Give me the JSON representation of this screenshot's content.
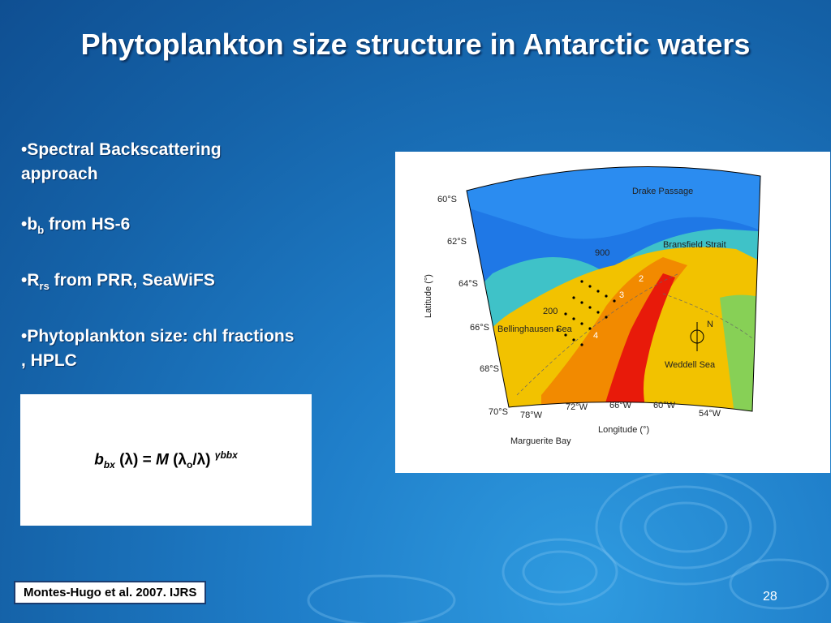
{
  "slide": {
    "title": "Phytoplankton size structure in Antarctic waters",
    "bullets": [
      {
        "pre": "•Spectral Backscattering approach",
        "sub": "",
        "post": ""
      },
      {
        "pre": "•b",
        "sub": "b",
        "post": " from HS-6"
      },
      {
        "pre": "•R",
        "sub": "rs",
        "post": " from PRR, SeaWiFS"
      },
      {
        "pre": "•Phytoplankton size: chl fractions , HPLC",
        "sub": "",
        "post": ""
      }
    ],
    "equation": {
      "b": "b",
      "b_sub": "bx",
      "lam_open": " (λ) = ",
      "M": "M",
      "lam0_open": " (λ",
      "lam0_sub": "o",
      "lam0_close": "/λ) ",
      "exp": "γbbx"
    },
    "citation": "Montes-Hugo et al. 2007. IJRS",
    "page_number": "28"
  },
  "map": {
    "lat_labels": [
      "60°S",
      "62°S",
      "64°S",
      "66°S",
      "68°S",
      "70°S"
    ],
    "lon_labels": [
      "78°W",
      "72°W",
      "66°W",
      "60°W",
      "54°W"
    ],
    "y_axis_label": "Latitude (°)",
    "x_axis_label": "Longitude (°)",
    "place_labels": {
      "drake": "Drake Passage",
      "bransfield": "Bransfield Strait",
      "bellingshausen": "Bellinghausen Sea",
      "weddell": "Weddell Sea",
      "marguerite": "Marguerite Bay",
      "north": "N"
    },
    "grid_labels": [
      "900",
      "200"
    ],
    "transect_labels": [
      "2",
      "3",
      "4"
    ]
  }
}
